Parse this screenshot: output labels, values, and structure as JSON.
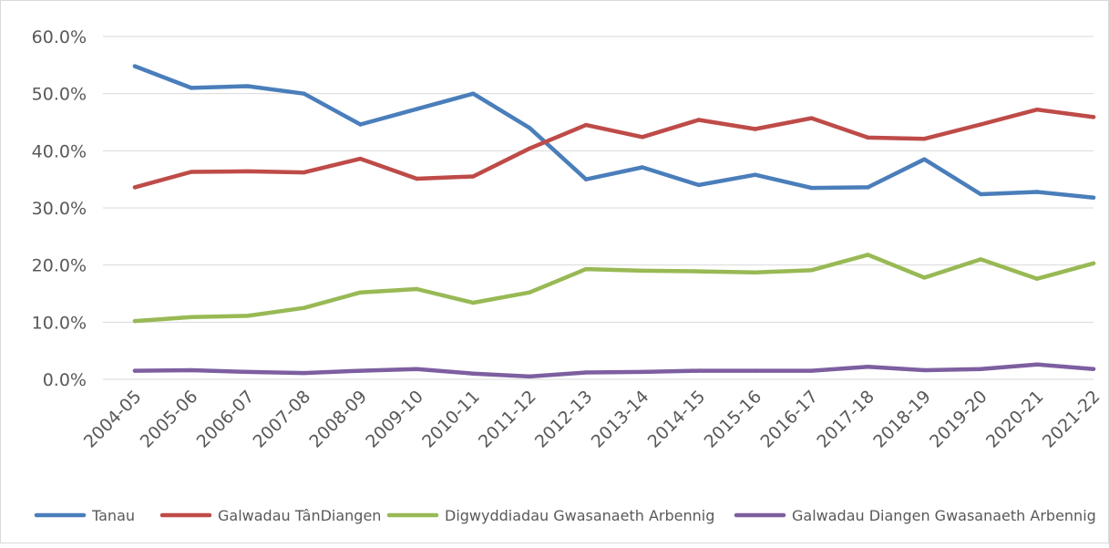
{
  "chart_data": {
    "type": "line",
    "title": "",
    "xlabel": "",
    "ylabel": "",
    "ylim": [
      0,
      60
    ],
    "y_tick_step": 10,
    "y_tick_labels": [
      "0.0%",
      "10.0%",
      "20.0%",
      "30.0%",
      "40.0%",
      "50.0%",
      "60.0%"
    ],
    "grid": "horizontal",
    "legend_position": "bottom",
    "categories": [
      "2004-05",
      "2005-06",
      "2006-07",
      "2007-08",
      "2008-09",
      "2009-10",
      "2010-11",
      "2011-12",
      "2012-13",
      "2013-14",
      "2014-15",
      "2015-16",
      "2016-17",
      "2017-18",
      "2018-19",
      "2019-20",
      "2020-21",
      "2021-22"
    ],
    "series": [
      {
        "name": "Tanau",
        "color": "#4a7ebb",
        "values": [
          54.8,
          51.0,
          51.3,
          50.0,
          44.6,
          47.3,
          50.0,
          44.0,
          35.0,
          37.1,
          34.0,
          35.8,
          33.5,
          33.6,
          38.5,
          32.4,
          32.8,
          31.8
        ]
      },
      {
        "name": "Galwadau TânDiangen",
        "color": "#be4b48",
        "values": [
          33.6,
          36.3,
          36.4,
          36.2,
          38.6,
          35.1,
          35.5,
          40.4,
          44.5,
          42.4,
          45.4,
          43.8,
          45.7,
          42.3,
          42.1,
          44.6,
          47.2,
          45.9
        ]
      },
      {
        "name": "Digwyddiadau Gwasanaeth Arbennig",
        "color": "#98b954",
        "values": [
          10.2,
          10.9,
          11.1,
          12.5,
          15.2,
          15.8,
          13.4,
          15.2,
          19.3,
          19.0,
          18.9,
          18.7,
          19.1,
          21.8,
          17.8,
          21.0,
          17.6,
          20.3
        ]
      },
      {
        "name": "Galwadau Diangen Gwasanaeth Arbennig",
        "color": "#7d5fa0",
        "values": [
          1.5,
          1.6,
          1.3,
          1.1,
          1.5,
          1.8,
          1.0,
          0.5,
          1.2,
          1.3,
          1.5,
          1.5,
          1.5,
          2.2,
          1.6,
          1.8,
          2.6,
          1.8
        ]
      }
    ]
  }
}
